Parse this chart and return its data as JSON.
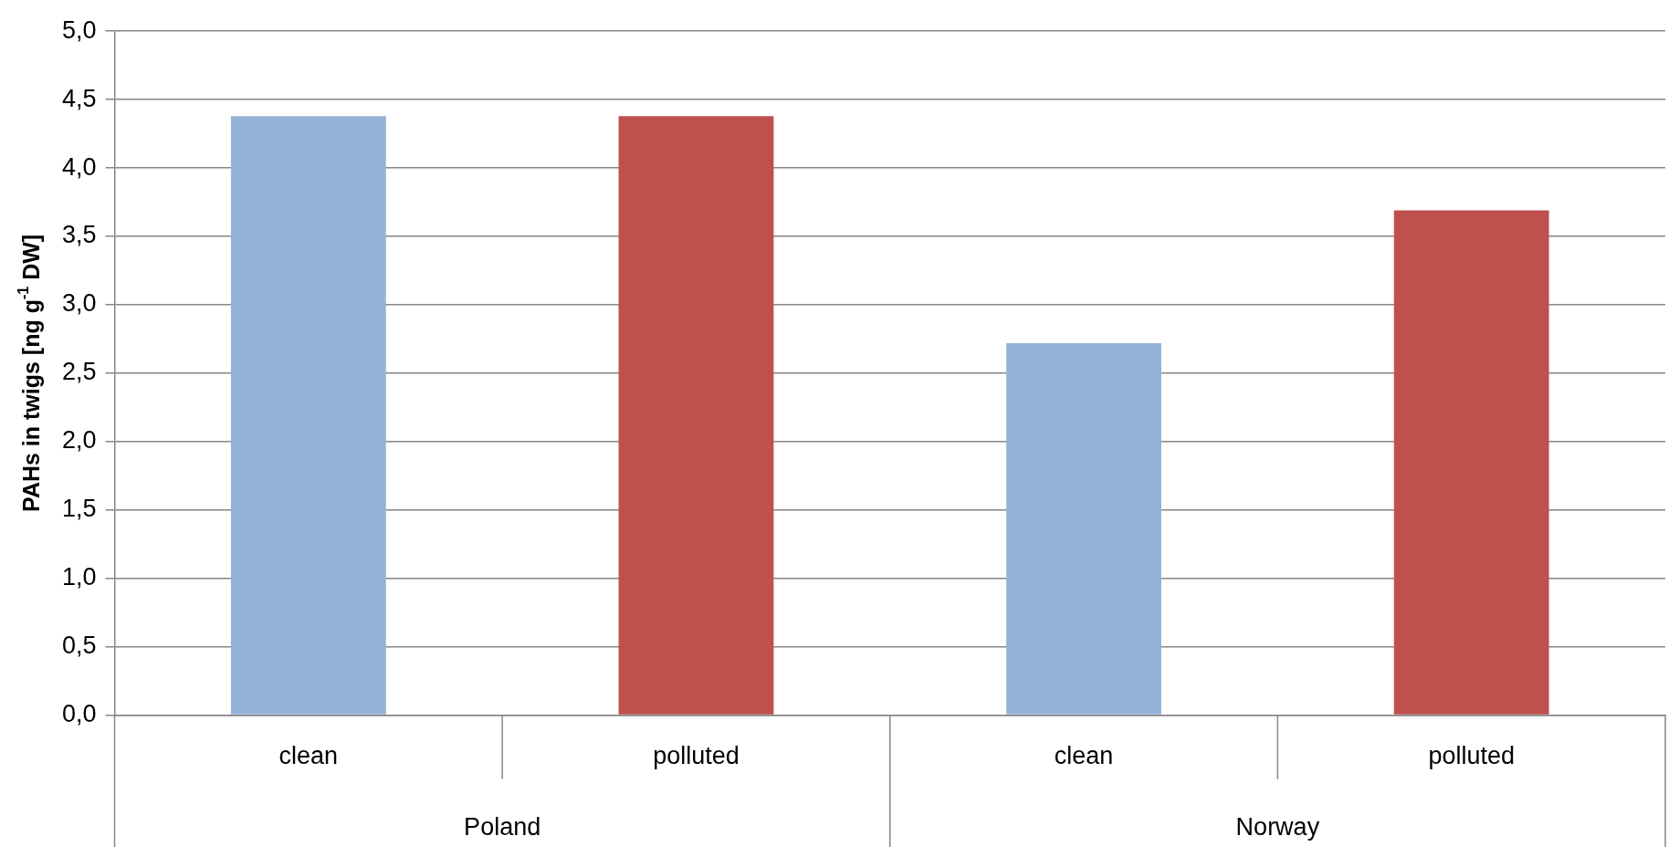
{
  "chart_data": {
    "type": "bar",
    "ylabel": "PAHs in twigs [ng g$^{-1}$ DW]",
    "categories": [
      "clean",
      "polluted",
      "clean",
      "polluted"
    ],
    "values": [
      4.38,
      4.38,
      2.72,
      3.69
    ],
    "colors": [
      "#95b3d7",
      "#c0504d",
      "#95b3d7",
      "#c0504d"
    ],
    "ylim": [
      0,
      5
    ],
    "yticks": [
      {
        "value": 0,
        "label": "0,0"
      },
      {
        "value": 0.5,
        "label": "0,5"
      },
      {
        "value": 1,
        "label": "1,0"
      },
      {
        "value": 1.5,
        "label": "1,5"
      },
      {
        "value": 2,
        "label": "2,0"
      },
      {
        "value": 2.5,
        "label": "2,5"
      },
      {
        "value": 3,
        "label": "3,0"
      },
      {
        "value": 3.5,
        "label": "3,5"
      },
      {
        "value": 4,
        "label": "4,0"
      },
      {
        "value": 4.5,
        "label": "4,5"
      },
      {
        "value": 5,
        "label": "5,0"
      }
    ],
    "grid": "y",
    "legend": false,
    "annotations": [
      "Poland",
      "Norway"
    ]
  }
}
